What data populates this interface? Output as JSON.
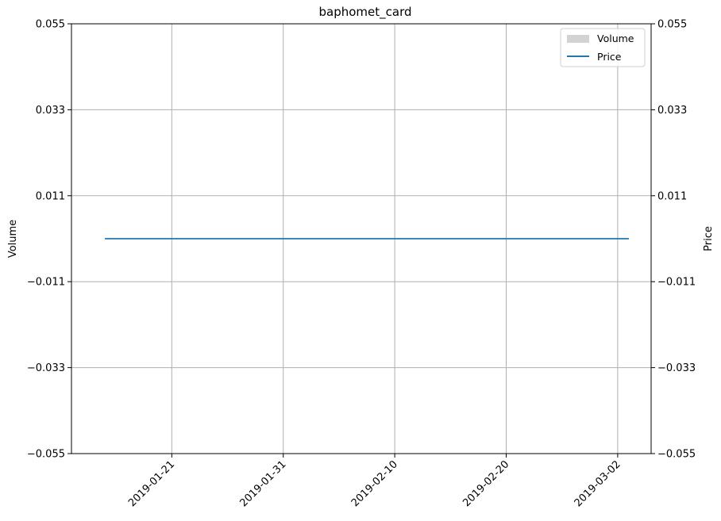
{
  "chart_data": {
    "type": "bar",
    "title": "baphomet_card",
    "xlabel": "",
    "ylabel": "Volume",
    "y2label": "Price",
    "x_type": "date",
    "xlim": [
      "2019-01-12",
      "2019-03-05"
    ],
    "ylim": [
      -0.055,
      0.055
    ],
    "y2lim": [
      -0.055,
      0.055
    ],
    "x_ticks": [
      "2019-01-21",
      "2019-01-31",
      "2019-02-10",
      "2019-02-20",
      "2019-03-02"
    ],
    "y_ticks": [
      "0.055",
      "0.033",
      "0.011",
      "−0.011",
      "−0.033",
      "−0.055"
    ],
    "y2_ticks": [
      "0.055",
      "0.033",
      "0.011",
      "−0.011",
      "−0.033",
      "−0.055"
    ],
    "grid": true,
    "legend": {
      "placement": "top-right",
      "entries": [
        "Volume",
        "Price"
      ]
    },
    "series": [
      {
        "name": "Volume",
        "kind": "bar",
        "axis": "left",
        "color": "#d3d3d3",
        "x": [],
        "values": []
      },
      {
        "name": "Price",
        "kind": "line",
        "axis": "right",
        "color": "#1f77b4",
        "x": [
          "2019-01-15",
          "2019-03-03"
        ],
        "values": [
          0,
          0
        ]
      }
    ]
  }
}
